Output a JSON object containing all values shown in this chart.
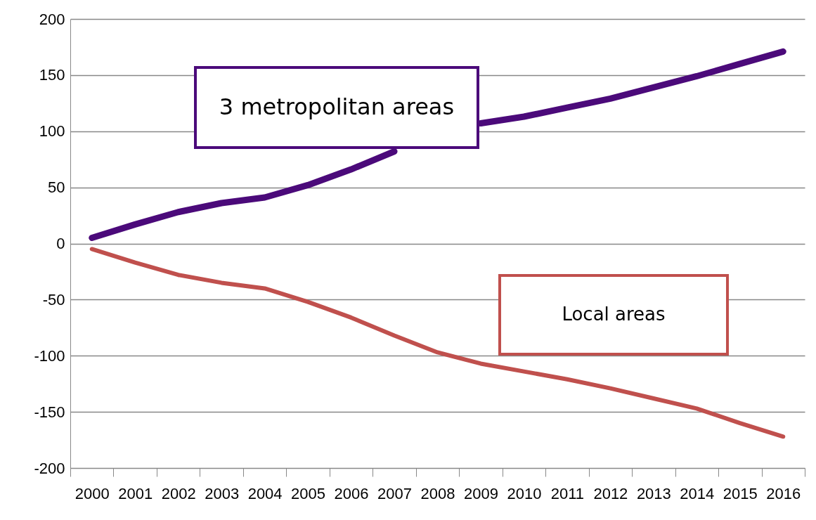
{
  "chart_data": {
    "type": "line",
    "categories": [
      "2000",
      "2001",
      "2002",
      "2003",
      "2004",
      "2005",
      "2006",
      "2007",
      "2008",
      "2009",
      "2010",
      "2011",
      "2012",
      "2013",
      "2014",
      "2015",
      "2016"
    ],
    "series": [
      {
        "name": "3 metropolitan areas",
        "color": "#4b0a7a",
        "values": [
          5,
          17,
          28,
          36,
          41,
          52,
          66,
          82,
          null,
          107,
          113,
          121,
          129,
          139,
          149,
          160,
          171
        ]
      },
      {
        "name": "Local areas",
        "color": "#c0504d",
        "values": [
          -5,
          -17,
          -28,
          -35,
          -40,
          -52,
          -66,
          -82,
          -97,
          -107,
          -114,
          -121,
          -129,
          -138,
          -147,
          -160,
          -172
        ]
      }
    ],
    "ylim": [
      -200,
      200
    ],
    "yticks": [
      -200,
      -150,
      -100,
      -50,
      0,
      50,
      100,
      150,
      200
    ],
    "grid": "y",
    "legend": false
  }
}
